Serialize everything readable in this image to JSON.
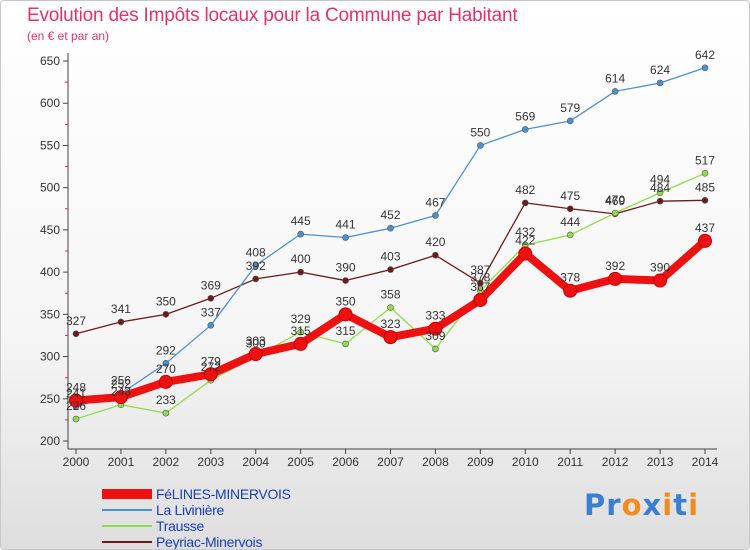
{
  "title": "Evolution des Impôts locaux pour la Commune par Habitant",
  "subtitle": "(en € et par an)",
  "logo": {
    "text": "Proxiti",
    "letters": [
      "P",
      "r",
      "o",
      "x",
      "i",
      "t",
      "i"
    ],
    "colors": [
      "#3a7fd0",
      "#3a7fd0",
      "#f28c1c",
      "#3a7fd0",
      "#f28c1c",
      "#3a7fd0",
      "#f28c1c"
    ]
  },
  "chart_data": {
    "type": "line",
    "title": "Evolution des Impôts locaux pour la Commune par Habitant",
    "subtitle": "(en € et par an)",
    "x": [
      "2000",
      "2001",
      "2002",
      "2003",
      "2004",
      "2005",
      "2006",
      "2007",
      "2008",
      "2009",
      "2010",
      "2011",
      "2012",
      "2013",
      "2014"
    ],
    "ylim": [
      200,
      650
    ],
    "yticks": [
      200,
      250,
      300,
      350,
      400,
      450,
      500,
      550,
      600,
      650
    ],
    "grid": false,
    "legend_position": "bottom-left",
    "series": [
      {
        "name": "FéLINES-MINERVOIS",
        "color": "#ee1111",
        "values": [
          248,
          252,
          270,
          279,
          303,
          315,
          350,
          323,
          333,
          367,
          422,
          378,
          392,
          390,
          437
        ]
      },
      {
        "name": "La Livinière",
        "color": "#4e90cf",
        "values": [
          241,
          256,
          292,
          337,
          408,
          445,
          441,
          452,
          467,
          550,
          569,
          579,
          614,
          624,
          642
        ]
      },
      {
        "name": "Trausse",
        "color": "#8edc4a",
        "values": [
          226,
          243,
          233,
          272,
          300,
          329,
          315,
          358,
          309,
          378,
          432,
          444,
          470,
          494,
          517
        ]
      },
      {
        "name": "Peyriac-Minervois",
        "color": "#6e1a1a",
        "values": [
          327,
          341,
          350,
          369,
          392,
          400,
          390,
          403,
          420,
          387,
          482,
          475,
          469,
          484,
          485
        ]
      }
    ]
  }
}
